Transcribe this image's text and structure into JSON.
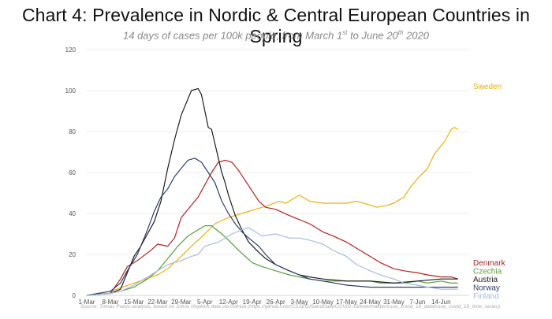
{
  "header": {
    "title": "Chart 4: Prevalence in Nordic & Central European Countries in Spring",
    "subtitle_pre": "14 days of cases per 100k people, from March 1",
    "subtitle_sup1": "st",
    "subtitle_mid": " to June 20",
    "subtitle_sup2": "th",
    "subtitle_post": " 2020"
  },
  "source": "Source: Tomas Pueyo analysis, based on Johns Hopkins data via GitHub (https://github.com/CSSEGISandData/COVID-19/tree/master/csse_covid_19_data/csse_covid_19_time_series)",
  "chart_data": {
    "type": "line",
    "title": "Chart 4: Prevalence in Nordic & Central European Countries in Spring",
    "subtitle": "14 days of cases per 100k people, from March 1st to June 20th 2020",
    "xlabel": "",
    "ylabel": "",
    "xlim": [
      0,
      111
    ],
    "ylim": [
      0,
      120
    ],
    "yticks": [
      0,
      20,
      40,
      60,
      80,
      100,
      120
    ],
    "xticks": [
      {
        "day": 0,
        "label": "1-Mar"
      },
      {
        "day": 7,
        "label": "8-Mar"
      },
      {
        "day": 14,
        "label": "15-Mar"
      },
      {
        "day": 21,
        "label": "22-Mar"
      },
      {
        "day": 28,
        "label": "29-Mar"
      },
      {
        "day": 35,
        "label": "5-Apr"
      },
      {
        "day": 42,
        "label": "12-Apr"
      },
      {
        "day": 49,
        "label": "19-Apr"
      },
      {
        "day": 56,
        "label": "26-Apr"
      },
      {
        "day": 63,
        "label": "3-May"
      },
      {
        "day": 70,
        "label": "10-May"
      },
      {
        "day": 77,
        "label": "17-May"
      },
      {
        "day": 84,
        "label": "24-May"
      },
      {
        "day": 91,
        "label": "31-May"
      },
      {
        "day": 98,
        "label": "7-Jun"
      },
      {
        "day": 105,
        "label": "14-Jun"
      }
    ],
    "grid": true,
    "series": [
      {
        "name": "Sweden",
        "color": "#E8B10C",
        "points": [
          [
            0,
            0
          ],
          [
            7,
            2
          ],
          [
            14,
            6
          ],
          [
            21,
            10
          ],
          [
            24,
            13
          ],
          [
            28,
            19
          ],
          [
            31,
            24
          ],
          [
            35,
            30
          ],
          [
            38,
            35
          ],
          [
            42,
            38
          ],
          [
            46,
            40
          ],
          [
            50,
            42
          ],
          [
            54,
            44
          ],
          [
            57,
            46
          ],
          [
            59,
            45
          ],
          [
            63,
            49
          ],
          [
            66,
            46
          ],
          [
            70,
            45
          ],
          [
            77,
            45
          ],
          [
            80,
            46
          ],
          [
            84,
            44
          ],
          [
            86,
            43
          ],
          [
            89,
            44
          ],
          [
            91,
            45
          ],
          [
            94,
            48
          ],
          [
            96,
            53
          ],
          [
            98,
            57
          ],
          [
            101,
            62
          ],
          [
            103,
            69
          ],
          [
            106,
            75
          ],
          [
            108,
            81
          ],
          [
            109,
            82
          ],
          [
            110,
            81
          ]
        ]
      },
      {
        "name": "Denmark",
        "color": "#B22222",
        "points": [
          [
            0,
            0
          ],
          [
            7,
            1
          ],
          [
            10,
            8
          ],
          [
            12,
            14
          ],
          [
            15,
            17
          ],
          [
            19,
            22
          ],
          [
            21,
            25
          ],
          [
            24,
            24
          ],
          [
            26,
            28
          ],
          [
            28,
            38
          ],
          [
            31,
            44
          ],
          [
            33,
            48
          ],
          [
            35,
            54
          ],
          [
            37,
            60
          ],
          [
            39,
            65
          ],
          [
            41,
            66
          ],
          [
            43,
            65
          ],
          [
            45,
            61
          ],
          [
            47,
            56
          ],
          [
            49,
            51
          ],
          [
            51,
            46
          ],
          [
            53,
            43
          ],
          [
            56,
            42
          ],
          [
            60,
            39
          ],
          [
            63,
            37
          ],
          [
            66,
            35
          ],
          [
            70,
            31
          ],
          [
            73,
            29
          ],
          [
            77,
            26
          ],
          [
            80,
            23
          ],
          [
            84,
            19
          ],
          [
            87,
            16
          ],
          [
            91,
            13
          ],
          [
            94,
            12
          ],
          [
            98,
            11
          ],
          [
            101,
            10
          ],
          [
            105,
            9
          ],
          [
            108,
            9
          ],
          [
            110,
            8
          ]
        ]
      },
      {
        "name": "Czechia",
        "color": "#5A9E3A",
        "points": [
          [
            0,
            0
          ],
          [
            7,
            1
          ],
          [
            10,
            2
          ],
          [
            14,
            4
          ],
          [
            18,
            8
          ],
          [
            21,
            12
          ],
          [
            24,
            18
          ],
          [
            27,
            24
          ],
          [
            30,
            29
          ],
          [
            33,
            32
          ],
          [
            35,
            34
          ],
          [
            37,
            34
          ],
          [
            40,
            30
          ],
          [
            42,
            27
          ],
          [
            45,
            22
          ],
          [
            47,
            19
          ],
          [
            49,
            16
          ],
          [
            52,
            14
          ],
          [
            56,
            12
          ],
          [
            60,
            10
          ],
          [
            63,
            9
          ],
          [
            66,
            8
          ],
          [
            70,
            7
          ],
          [
            77,
            7
          ],
          [
            84,
            7
          ],
          [
            87,
            6
          ],
          [
            91,
            6
          ],
          [
            94,
            6
          ],
          [
            98,
            7
          ],
          [
            101,
            6
          ],
          [
            105,
            7
          ],
          [
            108,
            6
          ],
          [
            110,
            6
          ]
        ]
      },
      {
        "name": "Austria",
        "color": "#1E1E1E",
        "points": [
          [
            0,
            0
          ],
          [
            7,
            1
          ],
          [
            10,
            3
          ],
          [
            12,
            11
          ],
          [
            14,
            19
          ],
          [
            16,
            24
          ],
          [
            18,
            30
          ],
          [
            20,
            36
          ],
          [
            22,
            46
          ],
          [
            24,
            62
          ],
          [
            26,
            76
          ],
          [
            28,
            88
          ],
          [
            30,
            96
          ],
          [
            31,
            100
          ],
          [
            33,
            101
          ],
          [
            34,
            98
          ],
          [
            35,
            90
          ],
          [
            36,
            82
          ],
          [
            37,
            81
          ],
          [
            38,
            74
          ],
          [
            39,
            67
          ],
          [
            40,
            60
          ],
          [
            41,
            55
          ],
          [
            42,
            49
          ],
          [
            44,
            39
          ],
          [
            46,
            32
          ],
          [
            48,
            26
          ],
          [
            51,
            21
          ],
          [
            53,
            18
          ],
          [
            56,
            15
          ],
          [
            60,
            12
          ],
          [
            63,
            10
          ],
          [
            66,
            9
          ],
          [
            70,
            8
          ],
          [
            77,
            7
          ],
          [
            84,
            7
          ],
          [
            91,
            6
          ],
          [
            98,
            7
          ],
          [
            105,
            8
          ],
          [
            108,
            8
          ],
          [
            110,
            8
          ]
        ]
      },
      {
        "name": "Norway",
        "color": "#2F3E6E",
        "points": [
          [
            0,
            0
          ],
          [
            7,
            2
          ],
          [
            10,
            6
          ],
          [
            12,
            12
          ],
          [
            15,
            20
          ],
          [
            18,
            32
          ],
          [
            20,
            41
          ],
          [
            22,
            48
          ],
          [
            24,
            52
          ],
          [
            26,
            58
          ],
          [
            28,
            62
          ],
          [
            30,
            66
          ],
          [
            32,
            67
          ],
          [
            34,
            65
          ],
          [
            36,
            60
          ],
          [
            38,
            55
          ],
          [
            40,
            46
          ],
          [
            42,
            40
          ],
          [
            44,
            35
          ],
          [
            46,
            31
          ],
          [
            48,
            28
          ],
          [
            51,
            24
          ],
          [
            53,
            20
          ],
          [
            56,
            15
          ],
          [
            60,
            12
          ],
          [
            63,
            10
          ],
          [
            66,
            8
          ],
          [
            70,
            7
          ],
          [
            77,
            5
          ],
          [
            84,
            4
          ],
          [
            91,
            4
          ],
          [
            98,
            4
          ],
          [
            105,
            4
          ],
          [
            110,
            4
          ]
        ]
      },
      {
        "name": "Finland",
        "color": "#A9BBDD",
        "points": [
          [
            0,
            0
          ],
          [
            7,
            1
          ],
          [
            10,
            2
          ],
          [
            14,
            5
          ],
          [
            18,
            9
          ],
          [
            21,
            12
          ],
          [
            24,
            15
          ],
          [
            28,
            17
          ],
          [
            31,
            19
          ],
          [
            33,
            20
          ],
          [
            35,
            24
          ],
          [
            37,
            25
          ],
          [
            39,
            26
          ],
          [
            41,
            28
          ],
          [
            43,
            30
          ],
          [
            46,
            32
          ],
          [
            48,
            33
          ],
          [
            50,
            31
          ],
          [
            52,
            29
          ],
          [
            56,
            30
          ],
          [
            60,
            28
          ],
          [
            63,
            28
          ],
          [
            66,
            27
          ],
          [
            70,
            25
          ],
          [
            73,
            22
          ],
          [
            77,
            19
          ],
          [
            80,
            15
          ],
          [
            84,
            12
          ],
          [
            87,
            10
          ],
          [
            91,
            8
          ],
          [
            94,
            6
          ],
          [
            98,
            5
          ],
          [
            101,
            4
          ],
          [
            105,
            3
          ],
          [
            108,
            3
          ],
          [
            110,
            3
          ]
        ]
      }
    ]
  }
}
